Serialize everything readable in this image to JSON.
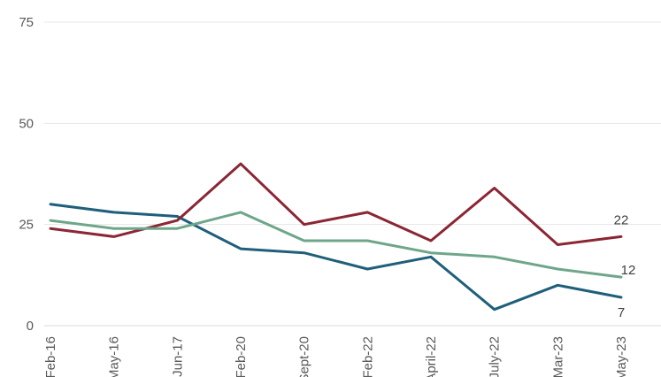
{
  "chart_data": {
    "type": "line",
    "title": "",
    "xlabel": "",
    "ylabel": "",
    "categories": [
      "Feb-16",
      "May-16",
      "Jun-17",
      "Feb-20",
      "Sept-20",
      "Feb-22",
      "April-22",
      "July-22",
      "Mar-23",
      "May-23"
    ],
    "ylim": [
      0,
      75
    ],
    "yticks": [
      0,
      25,
      50,
      75
    ],
    "grid": true,
    "legend": "none",
    "series": [
      {
        "color": "#1f5f7a",
        "values": [
          30,
          28,
          27,
          19,
          18,
          14,
          17,
          4,
          10,
          7
        ],
        "end_label": "7"
      },
      {
        "color": "#8b2635",
        "values": [
          24,
          22,
          26,
          40,
          25,
          28,
          21,
          34,
          20,
          22
        ],
        "end_label": "22"
      },
      {
        "color": "#6fa68a",
        "values": [
          26,
          24,
          24,
          28,
          21,
          21,
          18,
          17,
          14,
          12
        ],
        "end_label": "12"
      }
    ]
  }
}
